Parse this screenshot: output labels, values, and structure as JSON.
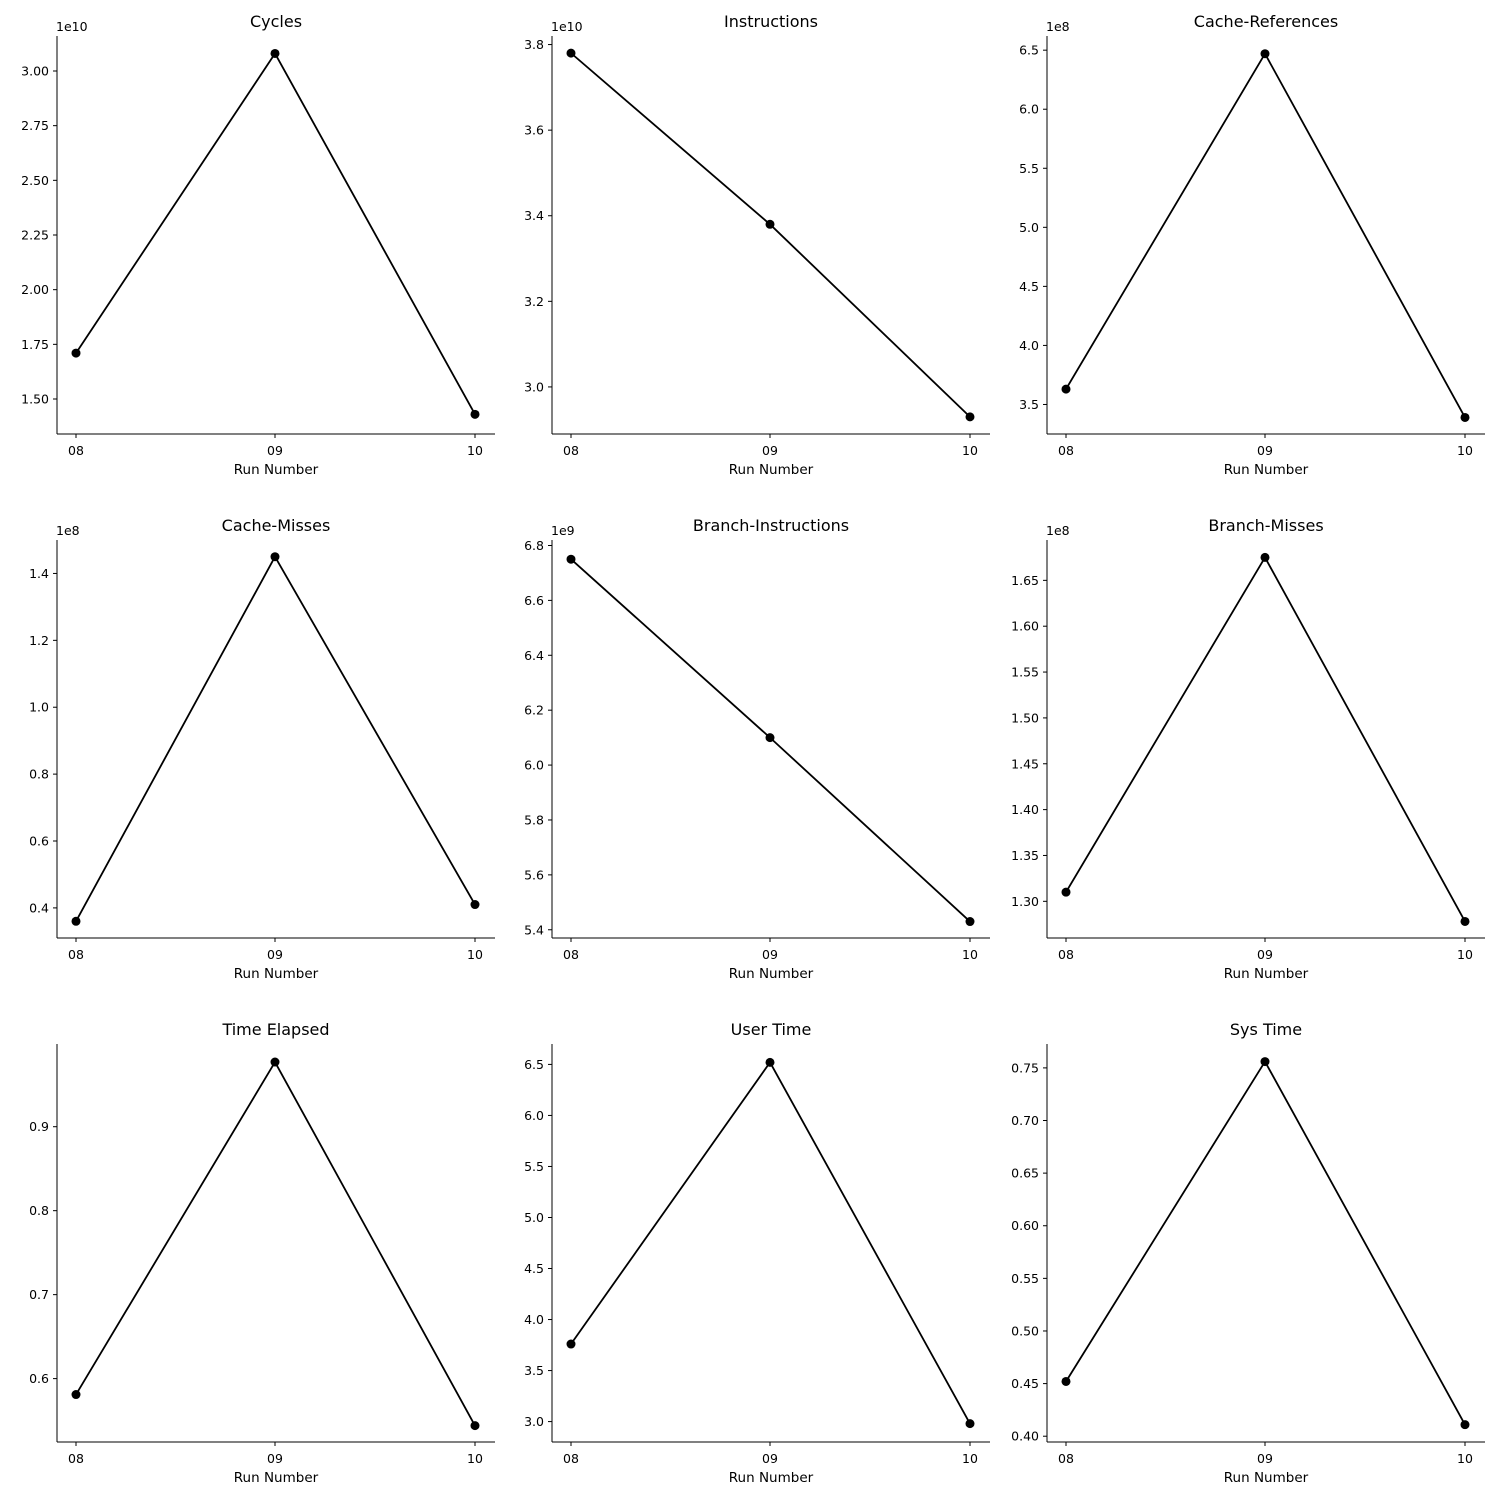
{
  "chart_data": [
    {
      "type": "line",
      "title": "Cycles",
      "xlabel": "Run Number",
      "ylabel": "",
      "categories": [
        "08",
        "09",
        "10"
      ],
      "offset_text": "1e10",
      "scale": 10000000000.0,
      "values": [
        17100000000.0,
        30800000000.0,
        14300000000.0
      ],
      "ylim": [
        13400000000.0,
        31600000000.0
      ],
      "yticks": [
        15000000000.0,
        17500000000.0,
        20000000000.0,
        22500000000.0,
        25000000000.0,
        27500000000.0,
        30000000000.0
      ],
      "ytick_labels": [
        "1.50",
        "1.75",
        "2.00",
        "2.25",
        "2.50",
        "2.75",
        "3.00"
      ],
      "grid": false,
      "color": "#000000"
    },
    {
      "type": "line",
      "title": "Instructions",
      "xlabel": "Run Number",
      "ylabel": "",
      "categories": [
        "08",
        "09",
        "10"
      ],
      "offset_text": "1e10",
      "scale": 10000000000.0,
      "values": [
        37800000000.0,
        33800000000.0,
        29300000000.0
      ],
      "ylim": [
        28900000000.0,
        38200000000.0
      ],
      "yticks": [
        30000000000.0,
        32000000000.0,
        34000000000.0,
        36000000000.0,
        38000000000.0
      ],
      "ytick_labels": [
        "3.0",
        "3.2",
        "3.4",
        "3.6",
        "3.8"
      ],
      "grid": false,
      "color": "#000000"
    },
    {
      "type": "line",
      "title": "Cache-References",
      "xlabel": "Run Number",
      "ylabel": "",
      "categories": [
        "08",
        "09",
        "10"
      ],
      "offset_text": "1e8",
      "scale": 100000000.0,
      "values": [
        363000000.0,
        647000000.0,
        339000000.0
      ],
      "ylim": [
        325000000.0,
        662000000.0
      ],
      "yticks": [
        350000000.0,
        400000000.0,
        450000000.0,
        500000000.0,
        550000000.0,
        600000000.0,
        650000000.0
      ],
      "ytick_labels": [
        "3.5",
        "4.0",
        "4.5",
        "5.0",
        "5.5",
        "6.0",
        "6.5"
      ],
      "grid": false,
      "color": "#000000"
    },
    {
      "type": "line",
      "title": "Cache-Misses",
      "xlabel": "Run Number",
      "ylabel": "",
      "categories": [
        "08",
        "09",
        "10"
      ],
      "offset_text": "1e8",
      "scale": 100000000.0,
      "values": [
        36000000.0,
        145000000.0,
        41000000.0
      ],
      "ylim": [
        31000000.0,
        150000000.0
      ],
      "yticks": [
        40000000.0,
        60000000.0,
        80000000.0,
        100000000.0,
        120000000.0,
        140000000.0
      ],
      "ytick_labels": [
        "0.4",
        "0.6",
        "0.8",
        "1.0",
        "1.2",
        "1.4"
      ],
      "grid": false,
      "color": "#000000"
    },
    {
      "type": "line",
      "title": "Branch-Instructions",
      "xlabel": "Run Number",
      "ylabel": "",
      "categories": [
        "08",
        "09",
        "10"
      ],
      "offset_text": "1e9",
      "scale": 1000000000.0,
      "values": [
        6750000000.0,
        6100000000.0,
        5430000000.0
      ],
      "ylim": [
        5370000000.0,
        6820000000.0
      ],
      "yticks": [
        5400000000.0,
        5600000000.0,
        5800000000.0,
        6000000000.0,
        6200000000.0,
        6400000000.0,
        6600000000.0,
        6800000000.0
      ],
      "ytick_labels": [
        "5.4",
        "5.6",
        "5.8",
        "6.0",
        "6.2",
        "6.4",
        "6.6",
        "6.8"
      ],
      "grid": false,
      "color": "#000000"
    },
    {
      "type": "line",
      "title": "Branch-Misses",
      "xlabel": "Run Number",
      "ylabel": "",
      "categories": [
        "08",
        "09",
        "10"
      ],
      "offset_text": "1e8",
      "scale": 100000000.0,
      "values": [
        131000000.0,
        167500000.0,
        127800000.0
      ],
      "ylim": [
        126000000.0,
        169400000.0
      ],
      "yticks": [
        130000000.0,
        135000000.0,
        140000000.0,
        145000000.0,
        150000000.0,
        155000000.0,
        160000000.0,
        165000000.0
      ],
      "ytick_labels": [
        "1.30",
        "1.35",
        "1.40",
        "1.45",
        "1.50",
        "1.55",
        "1.60",
        "1.65"
      ],
      "grid": false,
      "color": "#000000"
    },
    {
      "type": "line",
      "title": "Time Elapsed",
      "xlabel": "Run Number",
      "ylabel": "",
      "categories": [
        "08",
        "09",
        "10"
      ],
      "offset_text": "",
      "scale": 1,
      "values": [
        0.581,
        0.977,
        0.544
      ],
      "ylim": [
        0.5245,
        0.9985
      ],
      "yticks": [
        0.6,
        0.7,
        0.8,
        0.9
      ],
      "ytick_labels": [
        "0.6",
        "0.7",
        "0.8",
        "0.9"
      ],
      "grid": false,
      "color": "#000000"
    },
    {
      "type": "line",
      "title": "User Time",
      "xlabel": "Run Number",
      "ylabel": "",
      "categories": [
        "08",
        "09",
        "10"
      ],
      "offset_text": "",
      "scale": 1,
      "values": [
        3.76,
        6.52,
        2.98
      ],
      "ylim": [
        2.8,
        6.7
      ],
      "yticks": [
        3.0,
        3.5,
        4.0,
        4.5,
        5.0,
        5.5,
        6.0,
        6.5
      ],
      "ytick_labels": [
        "3.0",
        "3.5",
        "4.0",
        "4.5",
        "5.0",
        "5.5",
        "6.0",
        "6.5"
      ],
      "grid": false,
      "color": "#000000"
    },
    {
      "type": "line",
      "title": "Sys Time",
      "xlabel": "Run Number",
      "ylabel": "",
      "categories": [
        "08",
        "09",
        "10"
      ],
      "offset_text": "",
      "scale": 1,
      "values": [
        0.452,
        0.756,
        0.411
      ],
      "ylim": [
        0.3945,
        0.7727
      ],
      "yticks": [
        0.4,
        0.45,
        0.5,
        0.55,
        0.6,
        0.65,
        0.7,
        0.75
      ],
      "ytick_labels": [
        "0.40",
        "0.45",
        "0.50",
        "0.55",
        "0.60",
        "0.65",
        "0.70",
        "0.75"
      ],
      "grid": false,
      "color": "#000000"
    }
  ]
}
